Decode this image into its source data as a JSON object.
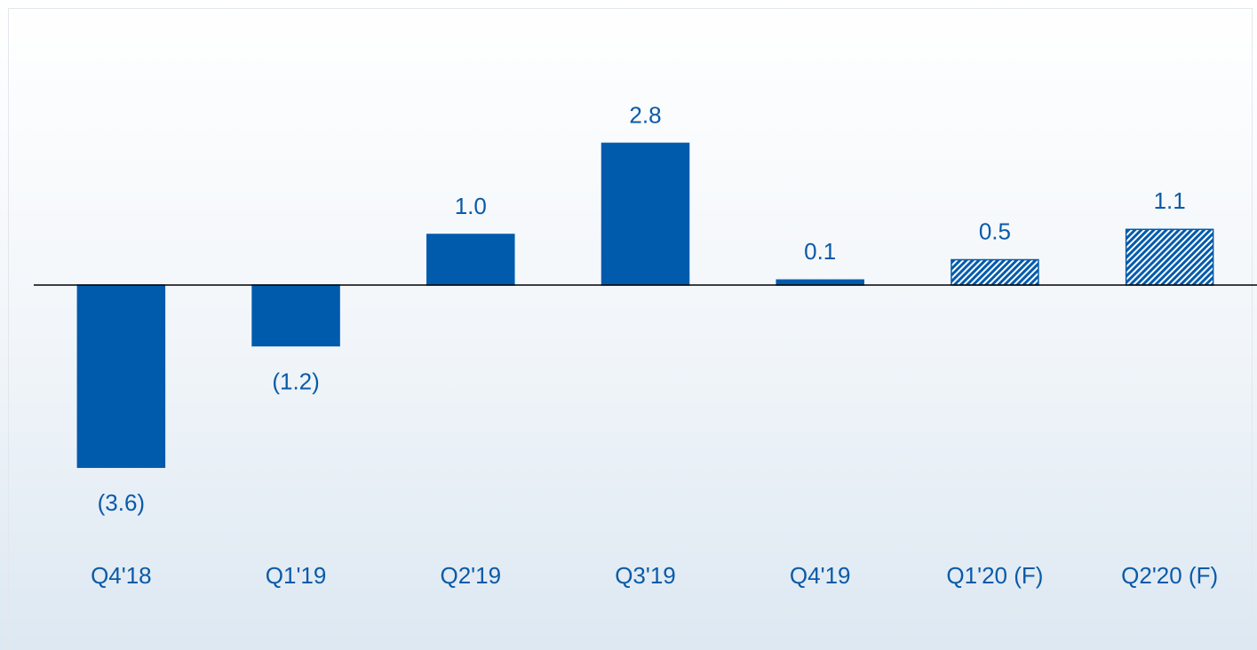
{
  "chart_data": {
    "type": "bar",
    "categories": [
      "Q4'18",
      "Q1'19",
      "Q2'19",
      "Q3'19",
      "Q4'19",
      "Q1'20 (F)",
      "Q2'20 (F)"
    ],
    "values": [
      -3.6,
      -1.2,
      1.0,
      2.8,
      0.1,
      0.5,
      1.1
    ],
    "value_labels": [
      "(3.6)",
      "(1.2)",
      "1.0",
      "2.8",
      "0.1",
      "0.5",
      "1.1"
    ],
    "hatched": [
      false,
      false,
      false,
      false,
      false,
      true,
      true
    ],
    "color": "#005bac",
    "ylim": [
      -5,
      4
    ]
  }
}
